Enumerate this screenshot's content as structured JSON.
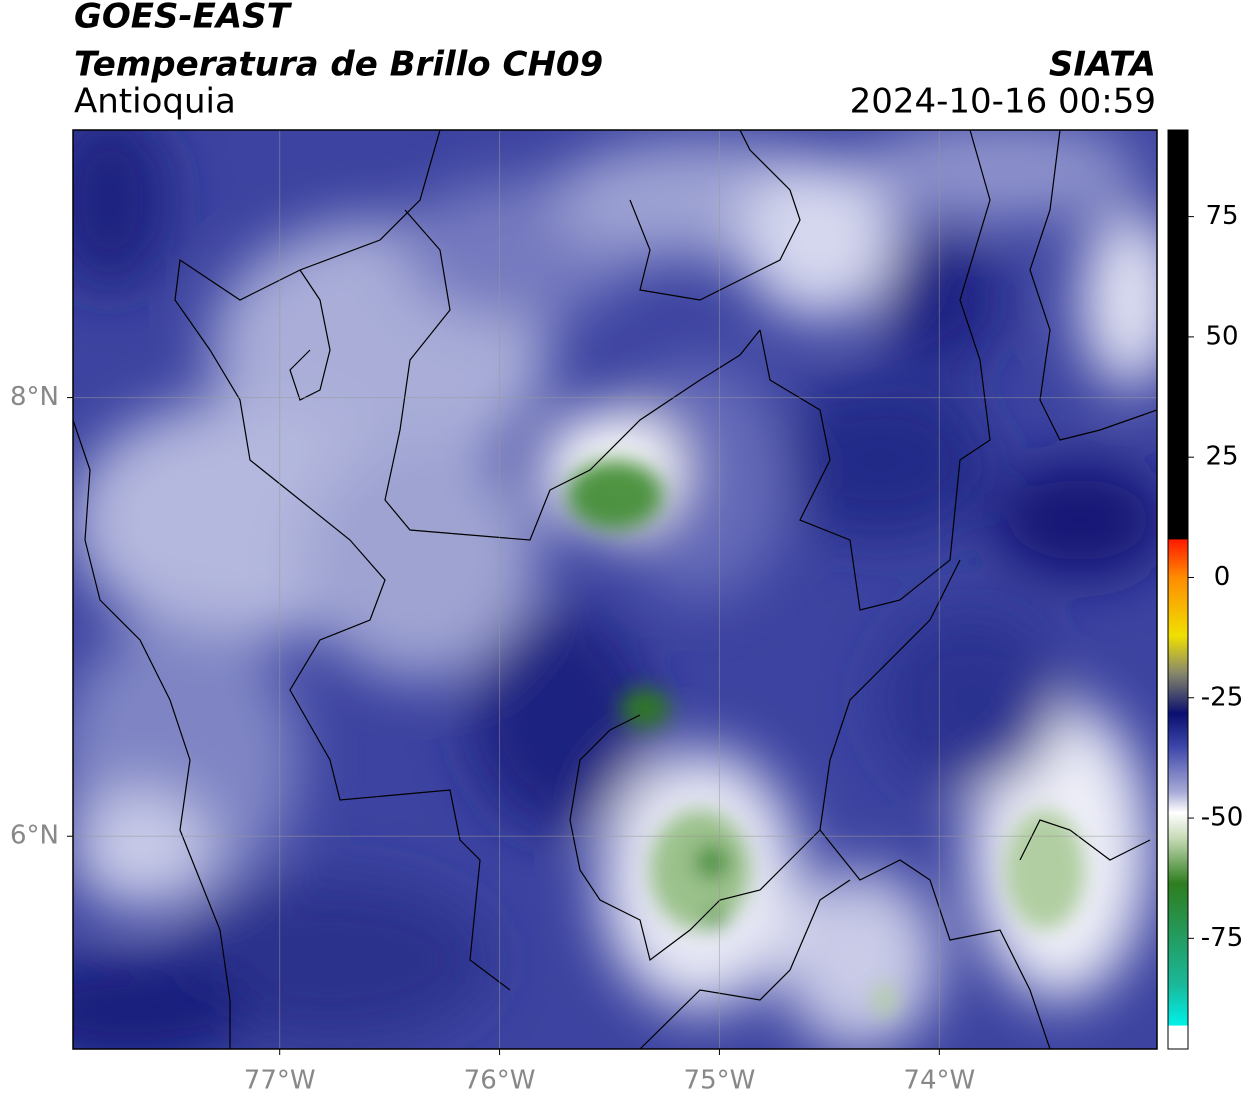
{
  "header": {
    "title": "GOES-EAST",
    "subtitle": "Temperatura de Brillo CH09",
    "region": "Antioquia",
    "source": "SIATA",
    "datetime": "2024-10-16 00:59"
  },
  "map": {
    "xlim": [
      -77.94,
      -73.01
    ],
    "ylim": [
      5.03,
      9.22
    ],
    "xticks": [
      {
        "value": -77,
        "label": "77°W"
      },
      {
        "value": -76,
        "label": "76°W"
      },
      {
        "value": -75,
        "label": "75°W"
      },
      {
        "value": -74,
        "label": "74°W"
      }
    ],
    "yticks": [
      {
        "value": 8,
        "label": "8°N"
      },
      {
        "value": 6,
        "label": "6°N"
      }
    ],
    "grid": true
  },
  "colorbar": {
    "lim": [
      -98,
      93
    ],
    "ticks": [
      -75,
      -50,
      -25,
      0,
      25,
      50,
      75
    ]
  }
}
